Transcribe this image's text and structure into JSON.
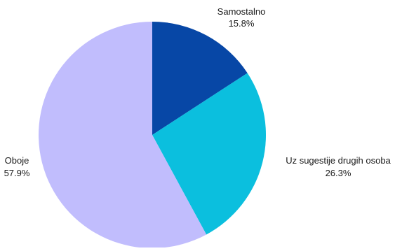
{
  "chart_data": {
    "type": "pie",
    "title": "",
    "slices": [
      {
        "label": "Samostalno",
        "value": 15.8,
        "value_label": "15.8%",
        "color": "#0747a6"
      },
      {
        "label": "Uz sugestije drugih osoba",
        "value": 26.3,
        "value_label": "26.3%",
        "color": "#0bbfde"
      },
      {
        "label": "Oboje",
        "value": 57.9,
        "value_label": "57.9%",
        "color": "#c1bdfd"
      }
    ],
    "start_angle": "12 o'clock",
    "direction": "clockwise",
    "legend": "none"
  }
}
